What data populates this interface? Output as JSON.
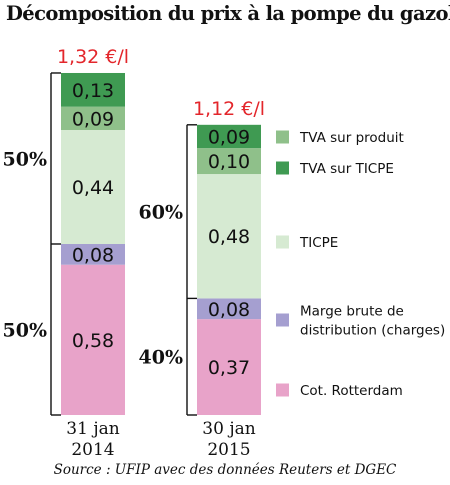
{
  "title": "Décomposition du prix à la pompe du gazole",
  "source": "Source : UFIP avec des données Reuters et DGEC",
  "chart_data": {
    "type": "bar",
    "stacked": true,
    "unit": "€/l",
    "categories": [
      {
        "line1": "31 jan",
        "line2": "2014"
      },
      {
        "line1": "30 jan",
        "line2": "2015"
      }
    ],
    "totals": [
      "1,32 €/l",
      "1,12 €/l"
    ],
    "series": [
      {
        "name": "Cot. Rotterdam",
        "color": "#e8a3c9",
        "values": [
          0.58,
          0.37
        ],
        "labels": [
          "0,58",
          "0,37"
        ]
      },
      {
        "name": "Marge brute de distribution (charges)",
        "name_lines": [
          "Marge brute de",
          "distribution (charges)"
        ],
        "color": "#a59fd0",
        "values": [
          0.08,
          0.08
        ],
        "labels": [
          "0,08",
          "0,08"
        ]
      },
      {
        "name": "TICPE",
        "color": "#d6ead2",
        "values": [
          0.44,
          0.48
        ],
        "labels": [
          "0,44",
          "0,48"
        ]
      },
      {
        "name": "TVA sur produit",
        "color": "#8fc08a",
        "values": [
          0.09,
          0.1
        ],
        "labels": [
          "0,09",
          "0,10"
        ]
      },
      {
        "name": "TVA sur TICPE",
        "color": "#3f9a52",
        "values": [
          0.13,
          0.09
        ],
        "labels": [
          "0,13",
          "0,09"
        ]
      }
    ],
    "legend_order": [
      "TVA sur produit",
      "TVA sur TICPE",
      "TICPE",
      "Marge brute de distribution (charges)",
      "Cot. Rotterdam"
    ],
    "shares": [
      {
        "top": "50%",
        "bottom": "50%"
      },
      {
        "top": "60%",
        "bottom": "40%"
      }
    ]
  }
}
